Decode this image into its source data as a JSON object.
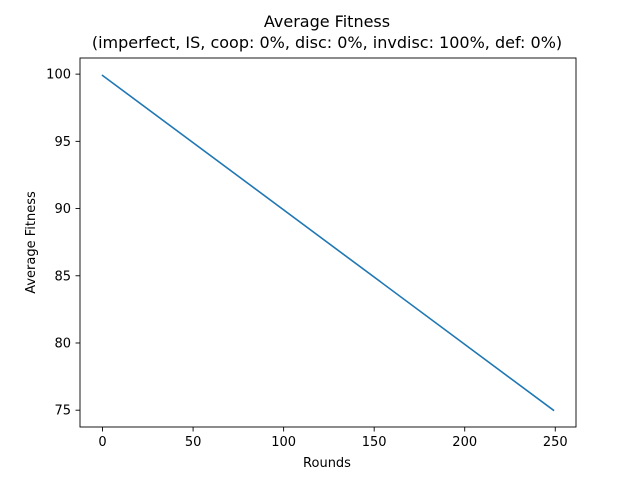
{
  "chart_data": {
    "type": "line",
    "title": "Average Fitness",
    "subtitle": "(imperfect, IS, coop: 0%, disc: 0%, invdisc: 100%, def: 0%)",
    "xlabel": "Rounds",
    "ylabel": "Average Fitness",
    "xlim": [
      -12.45,
      261.45
    ],
    "ylim": [
      73.75,
      101.2
    ],
    "xticks": [
      0,
      50,
      100,
      150,
      200,
      250
    ],
    "yticks": [
      75,
      80,
      85,
      90,
      95,
      100
    ],
    "grid": false,
    "series": [
      {
        "color": "#1f77b4",
        "x": [
          0,
          249
        ],
        "y": [
          99.9,
          75.0
        ]
      }
    ]
  }
}
